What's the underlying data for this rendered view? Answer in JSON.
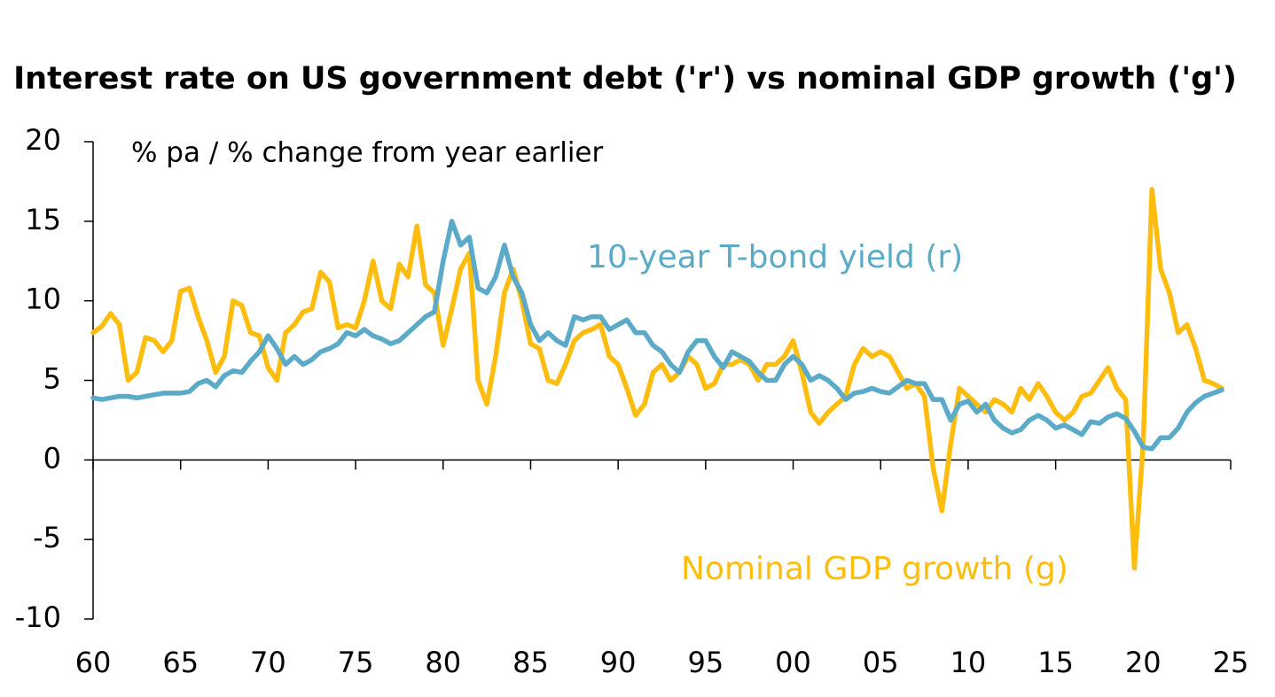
{
  "chart_data": {
    "type": "line",
    "title": "Interest rate on US government debt ('r') vs nominal GDP growth ('g')",
    "annotations": [
      {
        "text": "% pa / % change from year earlier",
        "color": "#000000"
      },
      {
        "text": "10-year T-bond yield (r)",
        "color": "#5aaac8"
      },
      {
        "text": "Nominal GDP growth (g)",
        "color": "#fcbd0e"
      }
    ],
    "x": [
      1960,
      1960.5,
      1961,
      1961.5,
      1962,
      1962.5,
      1963,
      1963.5,
      1964,
      1964.5,
      1965,
      1965.5,
      1966,
      1966.5,
      1967,
      1967.5,
      1968,
      1968.5,
      1969,
      1969.5,
      1970,
      1970.5,
      1971,
      1971.5,
      1972,
      1972.5,
      1973,
      1973.5,
      1974,
      1974.5,
      1975,
      1975.5,
      1976,
      1976.5,
      1977,
      1977.5,
      1978,
      1978.5,
      1979,
      1979.5,
      1980,
      1980.5,
      1981,
      1981.5,
      1982,
      1982.5,
      1983,
      1983.5,
      1984,
      1984.5,
      1985,
      1985.5,
      1986,
      1986.5,
      1987,
      1987.5,
      1988,
      1988.5,
      1989,
      1989.5,
      1990,
      1990.5,
      1991,
      1991.5,
      1992,
      1992.5,
      1993,
      1993.5,
      1994,
      1994.5,
      1995,
      1995.5,
      1996,
      1996.5,
      1997,
      1997.5,
      1998,
      1998.5,
      1999,
      1999.5,
      2000,
      2000.5,
      2001,
      2001.5,
      2002,
      2002.5,
      2003,
      2003.5,
      2004,
      2004.5,
      2005,
      2005.5,
      2006,
      2006.5,
      2007,
      2007.5,
      2008,
      2008.5,
      2009,
      2009.5,
      2010,
      2010.5,
      2011,
      2011.5,
      2012,
      2012.5,
      2013,
      2013.5,
      2014,
      2014.5,
      2015,
      2015.5,
      2016,
      2016.5,
      2017,
      2017.5,
      2018,
      2018.5,
      2019,
      2019.5,
      2020,
      2020.5,
      2021,
      2021.5,
      2022,
      2022.5,
      2023,
      2023.5,
      2024,
      2024.5
    ],
    "series": [
      {
        "name": "Nominal GDP growth (g)",
        "color": "#fcbd0e",
        "values": [
          8.0,
          8.4,
          9.2,
          8.5,
          5.0,
          5.5,
          7.7,
          7.5,
          6.8,
          7.5,
          10.6,
          10.8,
          9.0,
          7.5,
          5.5,
          6.5,
          10.0,
          9.7,
          8.0,
          7.8,
          5.8,
          5.0,
          8.0,
          8.5,
          9.3,
          9.5,
          11.8,
          11.2,
          8.3,
          8.5,
          8.3,
          10.0,
          12.5,
          10.0,
          9.5,
          12.3,
          11.5,
          14.7,
          11.0,
          10.5,
          7.2,
          9.5,
          12.0,
          13.0,
          5.0,
          3.5,
          6.5,
          10.5,
          12.0,
          10.0,
          7.3,
          7.0,
          5.0,
          4.8,
          6.0,
          7.5,
          8.0,
          8.2,
          8.5,
          6.5,
          6.0,
          4.5,
          2.8,
          3.5,
          5.5,
          6.0,
          5.0,
          5.5,
          6.5,
          6.0,
          4.5,
          4.8,
          6.0,
          6.0,
          6.3,
          6.0,
          5.0,
          6.0,
          6.0,
          6.5,
          7.5,
          5.5,
          3.0,
          2.3,
          3.0,
          3.5,
          4.0,
          6.0,
          7.0,
          6.5,
          6.8,
          6.5,
          5.5,
          4.5,
          4.8,
          4.0,
          -0.5,
          -3.2,
          1.0,
          4.5,
          4.0,
          3.5,
          3.0,
          3.8,
          3.5,
          3.0,
          4.5,
          3.8,
          4.8,
          4.0,
          3.0,
          2.5,
          3.0,
          4.0,
          4.2,
          5.0,
          5.8,
          4.5,
          3.8,
          -6.8,
          1.0,
          17.0,
          12.0,
          10.5,
          8.0,
          8.5,
          7.0,
          5.0,
          4.8,
          4.5
        ]
      },
      {
        "name": "10-year T-bond yield (r)",
        "color": "#5aaac8",
        "values": [
          3.9,
          3.8,
          3.9,
          4.0,
          4.0,
          3.9,
          4.0,
          4.1,
          4.2,
          4.2,
          4.2,
          4.3,
          4.8,
          5.0,
          4.6,
          5.3,
          5.6,
          5.5,
          6.2,
          6.8,
          7.8,
          7.0,
          6.0,
          6.5,
          6.0,
          6.3,
          6.8,
          7.0,
          7.3,
          8.0,
          7.8,
          8.2,
          7.8,
          7.6,
          7.3,
          7.5,
          8.0,
          8.5,
          9.0,
          9.3,
          12.5,
          15.0,
          13.5,
          14.0,
          10.8,
          10.5,
          11.5,
          13.5,
          11.5,
          10.5,
          8.5,
          7.5,
          8.0,
          7.5,
          7.2,
          9.0,
          8.8,
          9.0,
          9.0,
          8.2,
          8.5,
          8.8,
          8.0,
          8.0,
          7.2,
          6.8,
          6.0,
          5.5,
          6.8,
          7.5,
          7.5,
          6.5,
          5.8,
          6.8,
          6.5,
          6.2,
          5.5,
          5.0,
          5.0,
          6.0,
          6.5,
          6.0,
          5.0,
          5.3,
          5.0,
          4.5,
          3.8,
          4.2,
          4.3,
          4.5,
          4.3,
          4.2,
          4.6,
          5.0,
          4.8,
          4.8,
          3.8,
          3.8,
          2.5,
          3.5,
          3.7,
          3.0,
          3.5,
          2.5,
          2.0,
          1.7,
          1.9,
          2.5,
          2.8,
          2.5,
          2.0,
          2.2,
          1.9,
          1.6,
          2.4,
          2.3,
          2.7,
          2.9,
          2.6,
          1.8,
          0.8,
          0.7,
          1.4,
          1.4,
          2.0,
          3.0,
          3.6,
          4.0,
          4.2,
          4.4
        ]
      }
    ],
    "xlim": [
      1960,
      2025
    ],
    "xticks": [
      {
        "value": 1960,
        "label": "60"
      },
      {
        "value": 1965,
        "label": "65"
      },
      {
        "value": 1970,
        "label": "70"
      },
      {
        "value": 1975,
        "label": "75"
      },
      {
        "value": 1980,
        "label": "80"
      },
      {
        "value": 1985,
        "label": "85"
      },
      {
        "value": 1990,
        "label": "90"
      },
      {
        "value": 1995,
        "label": "95"
      },
      {
        "value": 2000,
        "label": "00"
      },
      {
        "value": 2005,
        "label": "05"
      },
      {
        "value": 2010,
        "label": "10"
      },
      {
        "value": 2015,
        "label": "15"
      },
      {
        "value": 2020,
        "label": "20"
      },
      {
        "value": 2025,
        "label": "25"
      }
    ],
    "ylim": [
      -10,
      20
    ],
    "yticks": [
      -10,
      -5,
      0,
      5,
      10,
      15,
      20
    ],
    "grid": false
  }
}
